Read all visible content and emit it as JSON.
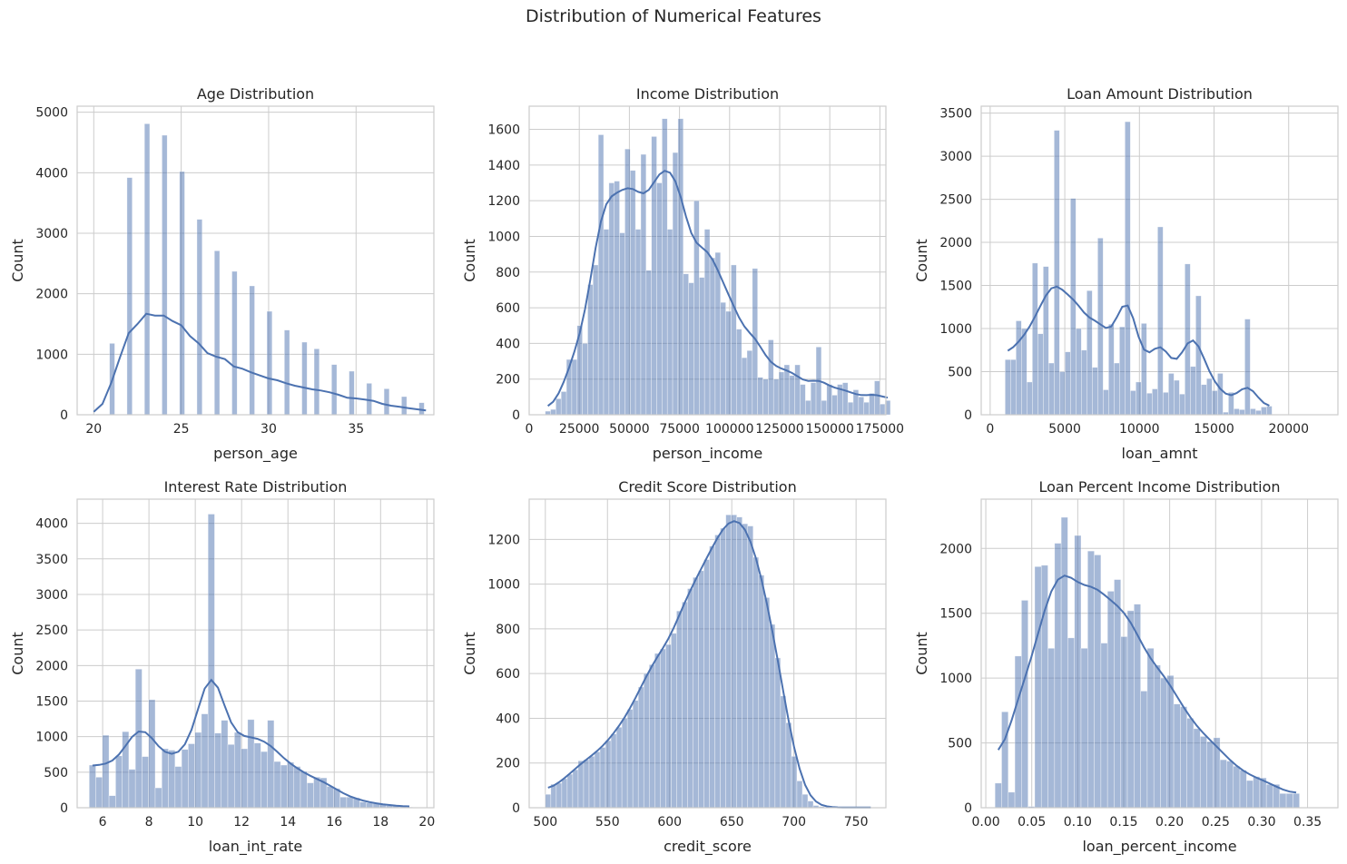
{
  "suptitle": "Distribution of Numerical Features",
  "colors": {
    "bars": "#4c72b0",
    "kde_line": "#4c72b0",
    "grid": "#cccccc"
  },
  "chart_data": [
    {
      "type": "bar",
      "title": "Age Distribution",
      "xlabel": "person_age",
      "ylabel": "Count",
      "xlim": [
        19.05,
        39.45
      ],
      "ylim": [
        0,
        5100
      ],
      "xticks": [
        20,
        25,
        30,
        35
      ],
      "yticks": [
        0,
        1000,
        2000,
        3000,
        4000,
        5000
      ],
      "grid": true,
      "bins": [
        [
          20.9,
          21.2,
          1180
        ],
        [
          21.9,
          22.2,
          3920
        ],
        [
          22.9,
          23.2,
          4810
        ],
        [
          23.9,
          24.2,
          4620
        ],
        [
          24.9,
          25.2,
          4020
        ],
        [
          25.9,
          26.2,
          3230
        ],
        [
          26.9,
          27.2,
          2710
        ],
        [
          27.9,
          28.2,
          2370
        ],
        [
          28.9,
          29.2,
          2130
        ],
        [
          29.9,
          30.2,
          1710
        ],
        [
          30.9,
          31.2,
          1400
        ],
        [
          31.9,
          32.2,
          1200
        ],
        [
          32.6,
          32.9,
          1090
        ],
        [
          33.6,
          33.9,
          830
        ],
        [
          34.6,
          34.9,
          720
        ],
        [
          35.6,
          35.9,
          520
        ],
        [
          36.6,
          36.9,
          430
        ],
        [
          37.6,
          37.9,
          300
        ],
        [
          38.6,
          38.9,
          200
        ]
      ],
      "kde": [
        [
          20,
          50
        ],
        [
          20.5,
          180
        ],
        [
          21,
          530
        ],
        [
          21.5,
          950
        ],
        [
          22,
          1350
        ],
        [
          22.5,
          1500
        ],
        [
          23,
          1670
        ],
        [
          23.5,
          1640
        ],
        [
          24,
          1640
        ],
        [
          24.5,
          1550
        ],
        [
          25,
          1480
        ],
        [
          25.5,
          1300
        ],
        [
          26,
          1180
        ],
        [
          26.5,
          1020
        ],
        [
          27,
          960
        ],
        [
          27.5,
          920
        ],
        [
          28,
          800
        ],
        [
          28.5,
          760
        ],
        [
          29,
          700
        ],
        [
          29.5,
          650
        ],
        [
          30,
          600
        ],
        [
          30.5,
          570
        ],
        [
          31,
          520
        ],
        [
          31.5,
          480
        ],
        [
          32,
          450
        ],
        [
          32.5,
          420
        ],
        [
          33,
          400
        ],
        [
          33.5,
          370
        ],
        [
          34,
          330
        ],
        [
          34.5,
          280
        ],
        [
          35,
          270
        ],
        [
          35.5,
          250
        ],
        [
          36,
          230
        ],
        [
          36.5,
          180
        ],
        [
          37,
          150
        ],
        [
          37.5,
          130
        ],
        [
          38,
          110
        ],
        [
          38.5,
          90
        ],
        [
          39,
          70
        ]
      ]
    },
    {
      "type": "bar",
      "title": "Income Distribution",
      "xlabel": "person_income",
      "ylabel": "Count",
      "xlim": [
        0,
        178000
      ],
      "ylim": [
        0,
        1730
      ],
      "xticks": [
        0,
        25000,
        50000,
        75000,
        100000,
        125000,
        150000,
        175000
      ],
      "yticks": [
        0,
        200,
        400,
        600,
        800,
        1000,
        1200,
        1400,
        1600
      ],
      "grid": true,
      "bin_start": 8000,
      "bin_width": 2650,
      "counts": [
        20,
        30,
        90,
        130,
        310,
        310,
        500,
        400,
        730,
        840,
        1570,
        1040,
        1300,
        1310,
        1020,
        1490,
        1370,
        1040,
        1460,
        810,
        1560,
        1300,
        1660,
        1040,
        1470,
        1660,
        790,
        740,
        1200,
        770,
        1040,
        880,
        910,
        630,
        580,
        840,
        480,
        320,
        360,
        820,
        210,
        200,
        420,
        200,
        240,
        280,
        220,
        280,
        170,
        80,
        180,
        380,
        80,
        170,
        110,
        170,
        180,
        70,
        140,
        100,
        70,
        120,
        190,
        60,
        80
      ]
    },
    {
      "type": "bar",
      "title": "Loan Amount Distribution",
      "xlabel": "loan_amnt",
      "ylabel": "Count",
      "xlim": [
        -600,
        23300
      ],
      "ylim": [
        0,
        3580
      ],
      "xticks": [
        0,
        5000,
        10000,
        15000,
        20000
      ],
      "yticks": [
        0,
        500,
        1000,
        1500,
        2000,
        2500,
        3000,
        3500
      ],
      "grid": true,
      "bin_start": 1000,
      "bin_width": 365,
      "counts": [
        640,
        640,
        1090,
        1000,
        380,
        1760,
        940,
        1720,
        600,
        3300,
        500,
        730,
        2510,
        1000,
        750,
        1440,
        550,
        2050,
        290,
        1050,
        600,
        1020,
        3400,
        280,
        380,
        1060,
        250,
        300,
        2180,
        260,
        480,
        400,
        240,
        1750,
        560,
        1380,
        350,
        420,
        280,
        480,
        30,
        260,
        70,
        60,
        1110,
        70,
        50,
        90,
        100
      ]
    },
    {
      "type": "bar",
      "title": "Interest Rate Distribution",
      "xlabel": "loan_int_rate",
      "ylabel": "Count",
      "xlim": [
        4.9,
        20.3
      ],
      "ylim": [
        0,
        4340
      ],
      "xticks": [
        6,
        8,
        10,
        12,
        14,
        16,
        18,
        20
      ],
      "yticks": [
        0,
        500,
        1000,
        1500,
        2000,
        2500,
        3000,
        3500,
        4000
      ],
      "grid": true,
      "bin_start": 5.42,
      "bin_width": 0.285,
      "counts": [
        600,
        430,
        1020,
        170,
        730,
        1070,
        540,
        1950,
        720,
        1520,
        280,
        830,
        810,
        580,
        820,
        900,
        1060,
        1320,
        4130,
        1050,
        1230,
        890,
        1060,
        830,
        1240,
        910,
        790,
        1230,
        650,
        600,
        640,
        580,
        510,
        350,
        430,
        420,
        300,
        270,
        150,
        150,
        140,
        80,
        70,
        60,
        50,
        30,
        30,
        20,
        10
      ]
    },
    {
      "type": "bar",
      "title": "Credit Score Distribution",
      "xlabel": "credit_score",
      "ylabel": "Count",
      "xlim": [
        487,
        774
      ],
      "ylim": [
        0,
        1380
      ],
      "xticks": [
        500,
        550,
        600,
        650,
        700,
        750
      ],
      "yticks": [
        0,
        200,
        400,
        600,
        800,
        1000,
        1200
      ],
      "grid": true,
      "bin_start": 500,
      "bin_width": 4.4,
      "counts": [
        60,
        105,
        110,
        130,
        150,
        170,
        210,
        215,
        230,
        250,
        270,
        300,
        330,
        360,
        400,
        440,
        480,
        540,
        600,
        640,
        690,
        710,
        730,
        780,
        880,
        920,
        980,
        1030,
        1060,
        1110,
        1170,
        1220,
        1250,
        1310,
        1310,
        1300,
        1270,
        1260,
        1120,
        1040,
        940,
        820,
        670,
        500,
        380,
        230,
        120,
        60,
        30,
        10,
        5,
        2,
        1,
        1,
        1,
        1,
        1,
        1,
        1,
        1
      ]
    },
    {
      "type": "bar",
      "title": "Loan Percent Income Distribution",
      "xlabel": "loan_percent_income",
      "ylabel": "Count",
      "xlim": [
        -0.005,
        0.383
      ],
      "ylim": [
        0,
        2380
      ],
      "xticks": [
        0.0,
        0.05,
        0.1,
        0.15,
        0.2,
        0.25,
        0.3,
        0.35
      ],
      "xtick_labels": [
        "0.00",
        "0.05",
        "0.10",
        "0.15",
        "0.20",
        "0.25",
        "0.30",
        "0.35"
      ],
      "yticks": [
        0,
        500,
        1000,
        1500,
        2000
      ],
      "grid": true,
      "bin_start": 0.01,
      "bin_width": 0.0072,
      "counts": [
        190,
        740,
        120,
        1170,
        1600,
        10,
        1860,
        1870,
        1230,
        2040,
        2240,
        1310,
        2100,
        1230,
        1980,
        1950,
        1270,
        1670,
        1760,
        1320,
        1520,
        1570,
        900,
        1230,
        1100,
        1000,
        1020,
        800,
        780,
        690,
        610,
        550,
        510,
        540,
        370,
        360,
        320,
        290,
        210,
        240,
        230,
        180,
        180,
        110,
        110,
        110
      ]
    }
  ]
}
